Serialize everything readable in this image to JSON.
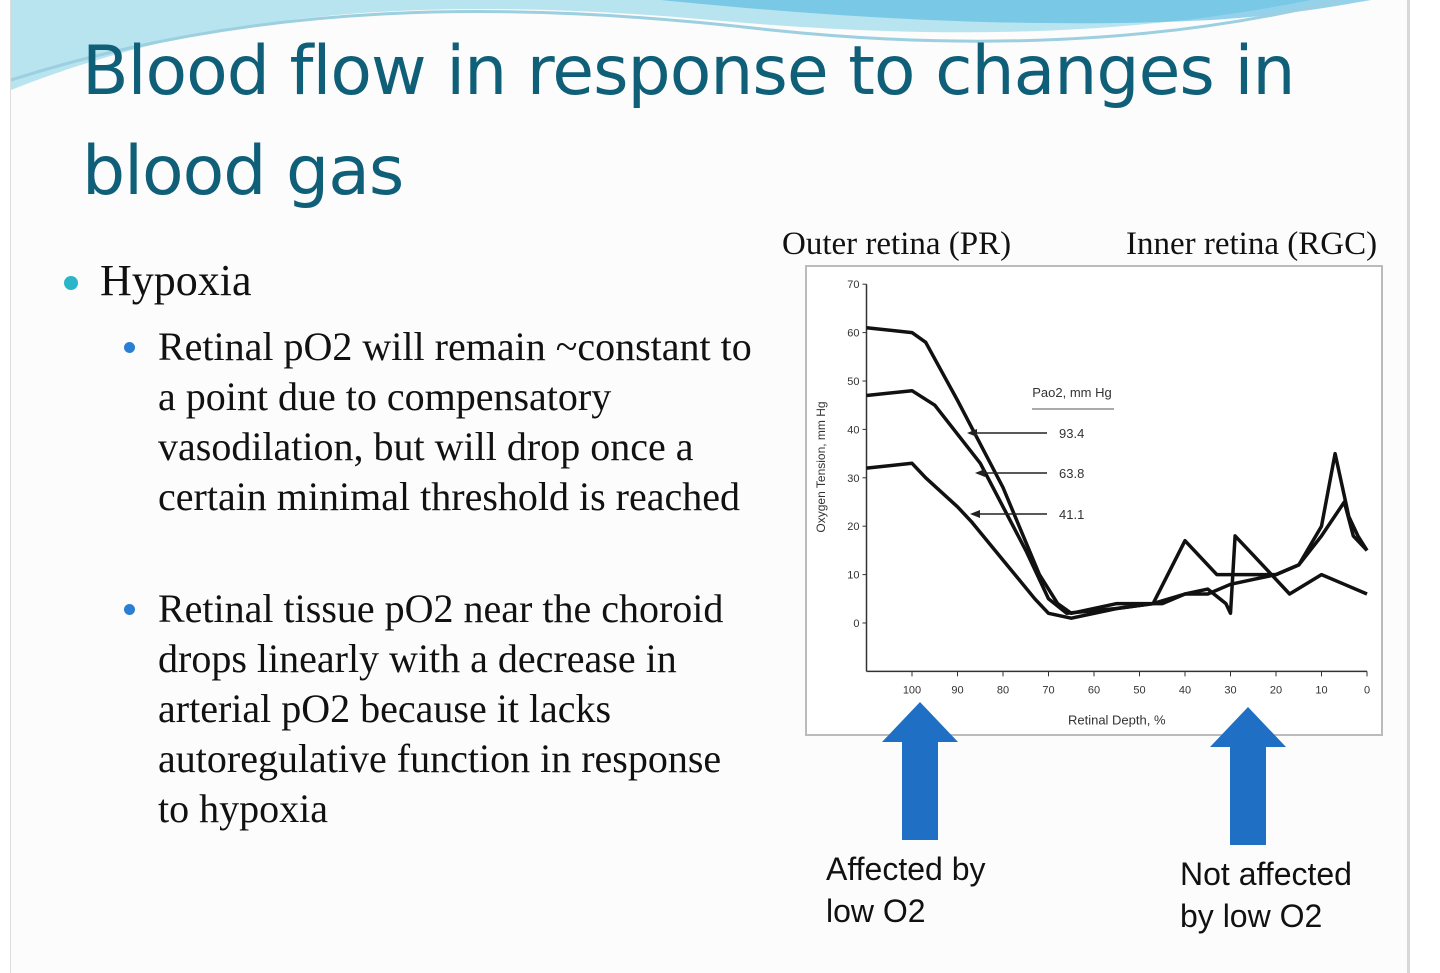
{
  "slide": {
    "title": "Blood flow in response to changes in blood gas",
    "bullet": "Hypoxia",
    "sub_bullets": [
      "Retinal pO2 will remain ~constant to a point due to compensatory vasodilation, but will drop once a certain minimal threshold is reached",
      "Retinal tissue pO2 near the choroid drops linearly with a decrease in arterial pO2 because it lacks autoregulative function in response to hypoxia"
    ],
    "outer_label": "Outer retina (PR)",
    "inner_label": "Inner retina (RGC)",
    "affected_label": "Affected by low O2",
    "not_affected_label": "Not affected by low O2",
    "colors": {
      "title": "#0f5f78",
      "arrow": "#1f6fc4",
      "bullet1": "#2bb5c8",
      "bullet2": "#2a7fd4"
    }
  },
  "chart_data": {
    "type": "line",
    "xlabel": "Retinal Depth, %",
    "ylabel": "Oxygen Tension, mm Hg",
    "legend_title": "Pao2, mm Hg",
    "xlim": [
      110,
      0
    ],
    "ylim": [
      -10,
      70
    ],
    "xticks": [
      "100",
      "90",
      "80",
      "70",
      "60",
      "50",
      "40",
      "30",
      "20",
      "10",
      "0"
    ],
    "yticks": [
      "70",
      "60",
      "50",
      "40",
      "30",
      "20",
      "10",
      "0"
    ],
    "series": [
      {
        "name": "93.4",
        "x": [
          110,
          100,
          97,
          90,
          80,
          72,
          68,
          65,
          55,
          45,
          40,
          35,
          30,
          25,
          20,
          15,
          10,
          7,
          4,
          2,
          0
        ],
        "y": [
          61,
          60,
          58,
          46,
          28,
          10,
          4,
          2,
          4,
          4,
          6,
          6,
          8,
          9,
          10,
          12,
          20,
          35,
          22,
          18,
          15
        ]
      },
      {
        "name": "63.8",
        "x": [
          110,
          100,
          95,
          85,
          75,
          70,
          66,
          55,
          47,
          40,
          33,
          28,
          20,
          15,
          10,
          5,
          3,
          0
        ],
        "y": [
          47,
          48,
          45,
          33,
          15,
          5,
          2,
          3,
          4,
          17,
          10,
          10,
          10,
          12,
          18,
          25,
          18,
          15
        ]
      },
      {
        "name": "41.1",
        "x": [
          110,
          100,
          97,
          90,
          87,
          80,
          73,
          70,
          65,
          55,
          47,
          40,
          35,
          31,
          30,
          29,
          25,
          20,
          17,
          10,
          5,
          0
        ],
        "y": [
          32,
          33,
          30,
          24,
          21,
          13,
          5,
          2,
          1,
          3,
          4,
          6,
          7,
          4,
          2,
          18,
          14,
          9,
          6,
          10,
          8,
          6
        ]
      }
    ]
  }
}
